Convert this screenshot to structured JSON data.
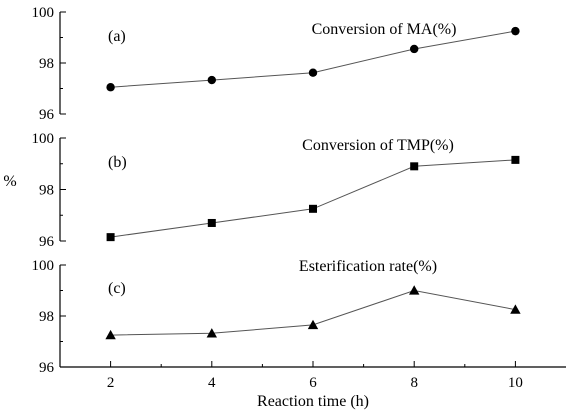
{
  "chart_data": {
    "type": "line",
    "xlabel": "Reaction time (h)",
    "ylabel": "%",
    "x": [
      2,
      4,
      6,
      8,
      10
    ],
    "x_ticks": [
      "2",
      "4",
      "6",
      "8",
      "10"
    ],
    "xlim": [
      1,
      11
    ],
    "grid": false,
    "panels": [
      {
        "tag": "(a)",
        "series": [
          {
            "name": "Conversion of MA(%)",
            "marker": "circle",
            "values": [
              97.05,
              97.33,
              97.62,
              98.55,
              99.25
            ]
          }
        ],
        "ylim": [
          96,
          100
        ],
        "y_ticks": [
          "96",
          "98",
          "100"
        ]
      },
      {
        "tag": "(b)",
        "series": [
          {
            "name": "Conversion of TMP(%)",
            "marker": "square",
            "values": [
              96.15,
              96.7,
              97.25,
              98.9,
              99.15
            ]
          }
        ],
        "ylim": [
          96,
          100
        ],
        "y_ticks": [
          "96",
          "98",
          "100"
        ]
      },
      {
        "tag": "(c)",
        "series": [
          {
            "name": "Esterification rate(%)",
            "marker": "triangle",
            "values": [
              97.25,
              97.32,
              97.65,
              99.0,
              98.25
            ]
          }
        ],
        "ylim": [
          96,
          100
        ],
        "y_ticks": [
          "96",
          "98",
          "100"
        ]
      }
    ]
  }
}
